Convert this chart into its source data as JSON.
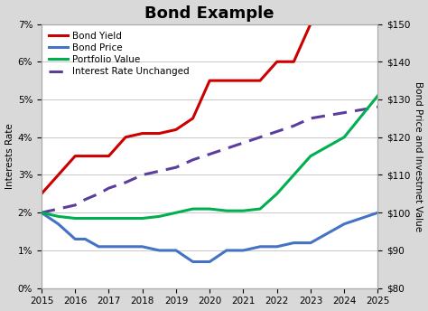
{
  "title": "Bond Example",
  "ylabel_left": "Interests Rate",
  "ylabel_right": "Bond Price and Investmet Value",
  "years": [
    2015,
    2015.5,
    2016,
    2016.3,
    2016.7,
    2017,
    2017.5,
    2018,
    2018.5,
    2019,
    2019.5,
    2020,
    2020.5,
    2021,
    2021.5,
    2022,
    2022.5,
    2023,
    2024,
    2025
  ],
  "bond_yield": [
    2.5,
    3.0,
    3.5,
    3.5,
    3.5,
    3.5,
    4.0,
    4.1,
    4.1,
    4.2,
    4.5,
    5.5,
    5.5,
    5.5,
    5.5,
    6.0,
    6.0,
    7.0,
    7.0,
    7.0
  ],
  "interest_unchanged": [
    2.0,
    2.1,
    2.2,
    2.35,
    2.5,
    2.65,
    2.8,
    3.0,
    3.1,
    3.2,
    3.4,
    3.55,
    3.7,
    3.85,
    4.0,
    4.15,
    4.3,
    4.5,
    4.65,
    4.8
  ],
  "bond_price_dollars": [
    100,
    97,
    93,
    93,
    91,
    91,
    91,
    91,
    90,
    90,
    87,
    87,
    90,
    90,
    91,
    91,
    92,
    92,
    97,
    100
  ],
  "portfolio_dollars": [
    100,
    99,
    98.5,
    98.5,
    98.5,
    98.5,
    98.5,
    98.5,
    99,
    100,
    101,
    101,
    100.5,
    100.5,
    101,
    105,
    110,
    115,
    120,
    131
  ],
  "bond_yield_color": "#cc0000",
  "bond_price_color": "#4472c4",
  "portfolio_value_color": "#00b050",
  "interest_unchanged_color": "#5a3d9e",
  "outer_bg": "#d9d9d9",
  "inner_bg": "#ffffff",
  "grid_color": "#c0c0c0",
  "ylim_left": [
    0,
    7
  ],
  "ylim_right": [
    80,
    150
  ],
  "yticks_left": [
    0,
    1,
    2,
    3,
    4,
    5,
    6,
    7
  ],
  "yticks_right": [
    80,
    90,
    100,
    110,
    120,
    130,
    140,
    150
  ],
  "xticks": [
    2015,
    2016,
    2017,
    2018,
    2019,
    2020,
    2021,
    2022,
    2023,
    2024,
    2025
  ],
  "title_fontsize": 13,
  "axis_label_fontsize": 7.5,
  "tick_fontsize": 7.5,
  "legend_fontsize": 7.5,
  "linewidth": 2.2
}
